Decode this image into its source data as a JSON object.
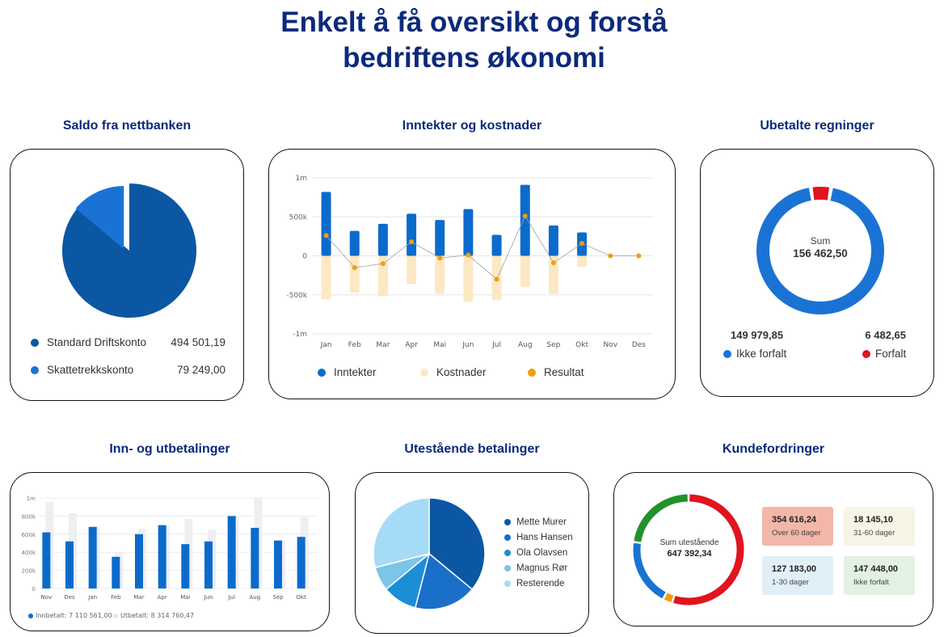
{
  "page": {
    "title_line1": "Enkelt å få oversikt og forstå",
    "title_line2": "bedriftens økonomi"
  },
  "cards": {
    "saldo": {
      "title": "Saldo fra nettbanken",
      "items": [
        {
          "label": "Standard Driftskonto",
          "value": "494 501,19",
          "color": "#0b57a4"
        },
        {
          "label": "Skattetrekkskonto",
          "value": "79 249,00",
          "color": "#1a73d4"
        }
      ]
    },
    "inntekter": {
      "title": "Inntekter og kostnader",
      "legend": [
        {
          "label": "Inntekter",
          "color": "#0b6bcb"
        },
        {
          "label": "Kostnader",
          "color": "#fce9c3"
        },
        {
          "label": "Resultat",
          "color": "#f39c12"
        }
      ]
    },
    "ubetalte": {
      "title": "Ubetalte regninger",
      "center_label": "Sum",
      "center_value": "156 462,50",
      "items": [
        {
          "label": "Ikke forfalt",
          "value": "149 979,85",
          "color": "#1a73d4"
        },
        {
          "label": "Forfalt",
          "value": "6 482,65",
          "color": "#e0141e"
        }
      ]
    },
    "innut": {
      "title": "Inn- og utbetalinger",
      "legend": [
        {
          "label": "Innbetalt: 7 110 561,00",
          "color": "#0b6bcb"
        },
        {
          "label": "Utbetalt: 8 314 760,47",
          "color": "#eeeef3"
        }
      ]
    },
    "utestaaende": {
      "title": "Utestående betalinger",
      "items": [
        {
          "label": "Mette Murer",
          "color": "#0b57a4"
        },
        {
          "label": "Hans Hansen",
          "color": "#1a6fc9"
        },
        {
          "label": "Ola Olavsen",
          "color": "#1b8ed6"
        },
        {
          "label": "Magnus Rør",
          "color": "#7cc4e8"
        },
        {
          "label": "Resterende",
          "color": "#a6dbf7"
        }
      ]
    },
    "kunde": {
      "title": "Kundefordringer",
      "center_label": "Sum utestående",
      "center_value": "647 392,34",
      "boxes": [
        {
          "value": "354 616,24",
          "label": "Over 60 dager",
          "color": "#f2b7a8"
        },
        {
          "value": "18 145,10",
          "label": "31-60 dager",
          "color": "#f7f4e6"
        },
        {
          "value": "127 183,00",
          "label": "1-30 dager",
          "color": "#e0eff8"
        },
        {
          "value": "147 448,00",
          "label": "Ikke forfalt",
          "color": "#e2f1e2"
        }
      ]
    }
  },
  "chart_data": [
    {
      "type": "pie",
      "title": "Saldo fra nettbanken",
      "labels": [
        "Standard Driftskonto",
        "Skattetrekkskonto"
      ],
      "values": [
        494501.19,
        79249.0
      ],
      "colors": [
        "#0b57a4",
        "#1a73d4"
      ]
    },
    {
      "type": "bar",
      "title": "Inntekter og kostnader",
      "categories": [
        "Jan",
        "Feb",
        "Mar",
        "Apr",
        "Mai",
        "Jun",
        "Jul",
        "Aug",
        "Sep",
        "Okt",
        "Nov",
        "Des"
      ],
      "ylim": [
        -1000000,
        1000000
      ],
      "yticks": [
        "1m",
        "500k",
        "0",
        "-500k",
        "-1m"
      ],
      "series": [
        {
          "name": "Inntekter",
          "values": [
            820000,
            320000,
            410000,
            540000,
            460000,
            600000,
            270000,
            910000,
            390000,
            300000,
            0,
            0
          ],
          "color": "#0b6bcb"
        },
        {
          "name": "Kostnader",
          "values": [
            -560000,
            -470000,
            -520000,
            -360000,
            -490000,
            -590000,
            -570000,
            -400000,
            -490000,
            -140000,
            0,
            0
          ],
          "color": "#fce9c3"
        },
        {
          "name": "Resultat",
          "values": [
            260000,
            -150000,
            -100000,
            180000,
            -30000,
            10000,
            -300000,
            510000,
            -90000,
            160000,
            0,
            0
          ],
          "color": "#f39c12"
        }
      ]
    },
    {
      "type": "pie",
      "title": "Ubetalte regninger",
      "labels": [
        "Ikke forfalt",
        "Forfalt"
      ],
      "values": [
        149979.85,
        6482.65
      ],
      "colors": [
        "#1a73d4",
        "#e0141e"
      ]
    },
    {
      "type": "bar",
      "title": "Inn- og utbetalinger",
      "categories": [
        "Nov",
        "Des",
        "Jan",
        "Feb",
        "Mar",
        "Apr",
        "Mai",
        "Jun",
        "Jul",
        "Aug",
        "Sep",
        "Okt"
      ],
      "ylim": [
        0,
        1000000
      ],
      "yticks": [
        "1m",
        "800k",
        "600k",
        "400k",
        "200k",
        "0"
      ],
      "series": [
        {
          "name": "Innbetalt",
          "values": [
            620000,
            520000,
            680000,
            350000,
            600000,
            700000,
            490000,
            520000,
            800000,
            670000,
            530000,
            570000
          ],
          "color": "#0b6bcb"
        },
        {
          "name": "Utbetalt",
          "values": [
            950000,
            830000,
            690000,
            400000,
            660000,
            700000,
            770000,
            650000,
            810000,
            1000000,
            530000,
            790000
          ],
          "color": "#eeeef3"
        }
      ]
    },
    {
      "type": "pie",
      "title": "Utestående betalinger",
      "labels": [
        "Mette Murer",
        "Hans Hansen",
        "Ola Olavsen",
        "Magnus Rør",
        "Resterende"
      ],
      "values": [
        36,
        18,
        10,
        7,
        29
      ],
      "colors": [
        "#0b57a4",
        "#1a6fc9",
        "#1b8ed6",
        "#7cc4e8",
        "#a6dbf7"
      ]
    },
    {
      "type": "pie",
      "title": "Kundefordringer",
      "labels": [
        "Over 60 dager",
        "31-60 dager",
        "1-30 dager",
        "Ikke forfalt"
      ],
      "values": [
        354616.24,
        18145.1,
        127183.0,
        147448.0
      ],
      "colors": [
        "#e0141e",
        "#f39c12",
        "#1a73d4",
        "#21922c"
      ]
    }
  ]
}
